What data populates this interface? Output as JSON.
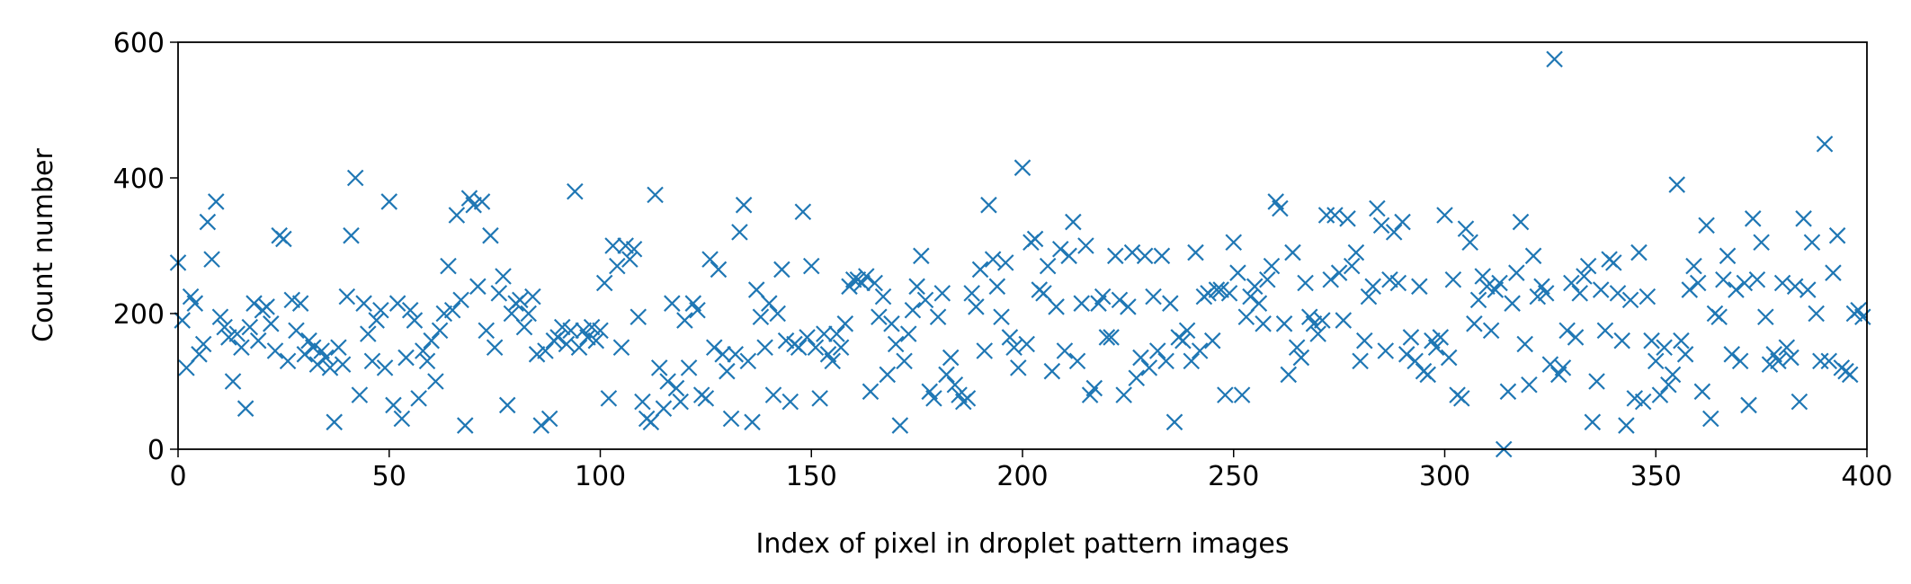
{
  "chart_data": {
    "type": "scatter",
    "xlabel": "Index of pixel in droplet pattern images",
    "ylabel": "Count number",
    "marker": "x",
    "color": "#1f77b4",
    "xlim": [
      0,
      400
    ],
    "xticks": [
      0,
      50,
      100,
      150,
      200,
      250,
      300,
      350,
      400
    ],
    "ylim": [
      0,
      600
    ],
    "yticks": [
      0,
      200,
      400,
      600
    ],
    "grid": false,
    "x": [
      0,
      1,
      2,
      3,
      4,
      5,
      6,
      7,
      8,
      9,
      10,
      11,
      12,
      13,
      14,
      15,
      16,
      17,
      18,
      19,
      20,
      21,
      22,
      23,
      24,
      25,
      26,
      27,
      28,
      29,
      30,
      31,
      32,
      33,
      34,
      35,
      36,
      37,
      38,
      39,
      40,
      41,
      42,
      43,
      44,
      45,
      46,
      47,
      48,
      49,
      50,
      51,
      52,
      53,
      54,
      55,
      56,
      57,
      58,
      59,
      60,
      61,
      62,
      63,
      64,
      65,
      66,
      67,
      68,
      69,
      70,
      71,
      72,
      73,
      74,
      75,
      76,
      77,
      78,
      79,
      80,
      81,
      82,
      83,
      84,
      85,
      86,
      87,
      88,
      89,
      90,
      91,
      92,
      93,
      94,
      95,
      96,
      97,
      98,
      99,
      100,
      101,
      102,
      103,
      104,
      105,
      106,
      107,
      108,
      109,
      110,
      111,
      112,
      113,
      114,
      115,
      116,
      117,
      118,
      119,
      120,
      121,
      122,
      123,
      124,
      125,
      126,
      127,
      128,
      129,
      130,
      131,
      132,
      133,
      134,
      135,
      136,
      137,
      138,
      139,
      140,
      141,
      142,
      143,
      144,
      145,
      146,
      147,
      148,
      149,
      150,
      151,
      152,
      153,
      154,
      155,
      156,
      157,
      158,
      159,
      160,
      161,
      162,
      163,
      164,
      165,
      166,
      167,
      168,
      169,
      170,
      171,
      172,
      173,
      174,
      175,
      176,
      177,
      178,
      179,
      180,
      181,
      182,
      183,
      184,
      185,
      186,
      187,
      188,
      189,
      190,
      191,
      192,
      193,
      194,
      195,
      196,
      197,
      198,
      199,
      200,
      201,
      202,
      203,
      204,
      205,
      206,
      207,
      208,
      209,
      210,
      211,
      212,
      213,
      214,
      215,
      216,
      217,
      218,
      219,
      220,
      221,
      222,
      223,
      224,
      225,
      226,
      227,
      228,
      229,
      230,
      231,
      232,
      233,
      234,
      235,
      236,
      237,
      238,
      239,
      240,
      241,
      242,
      243,
      244,
      245,
      246,
      247,
      248,
      249,
      250,
      251,
      252,
      253,
      254,
      255,
      256,
      257,
      258,
      259,
      260,
      261,
      262,
      263,
      264,
      265,
      266,
      267,
      268,
      269,
      270,
      271,
      272,
      273,
      274,
      275,
      276,
      277,
      278,
      279,
      280,
      281,
      282,
      283,
      284,
      285,
      286,
      287,
      288,
      289,
      290,
      291,
      292,
      293,
      294,
      295,
      296,
      297,
      298,
      299,
      300,
      301,
      302,
      303,
      304,
      305,
      306,
      307,
      308,
      309,
      310,
      311,
      312,
      313,
      314,
      315,
      316,
      317,
      318,
      319,
      320,
      321,
      322,
      323,
      324,
      325,
      326,
      327,
      328,
      329,
      330,
      331,
      332,
      333,
      334,
      335,
      336,
      337,
      338,
      339,
      340,
      341,
      342,
      343,
      344,
      345,
      346,
      347,
      348,
      349,
      350,
      351,
      352,
      353,
      354,
      355,
      356,
      357,
      358,
      359,
      360,
      361,
      362,
      363,
      364,
      365,
      366,
      367,
      368,
      369,
      370,
      371,
      372,
      373,
      374,
      375,
      376,
      377,
      378,
      379,
      380,
      381,
      382,
      383,
      384,
      385,
      386,
      387,
      388,
      389,
      390,
      391,
      392,
      393,
      394,
      395,
      396,
      397,
      398,
      399
    ],
    "values": [
      275,
      190,
      120,
      225,
      215,
      140,
      155,
      335,
      280,
      365,
      195,
      180,
      165,
      100,
      170,
      150,
      60,
      180,
      215,
      160,
      205,
      210,
      185,
      145,
      315,
      310,
      130,
      220,
      175,
      215,
      140,
      160,
      150,
      125,
      145,
      135,
      120,
      40,
      150,
      125,
      225,
      315,
      400,
      80,
      215,
      170,
      130,
      190,
      205,
      120,
      365,
      65,
      215,
      45,
      135,
      205,
      190,
      75,
      145,
      130,
      160,
      100,
      175,
      200,
      270,
      205,
      345,
      220,
      35,
      370,
      360,
      240,
      365,
      175,
      315,
      150,
      230,
      255,
      65,
      200,
      215,
      220,
      180,
      200,
      225,
      140,
      35,
      145,
      45,
      160,
      165,
      180,
      155,
      175,
      380,
      150,
      175,
      165,
      180,
      160,
      175,
      245,
      75,
      300,
      270,
      150,
      300,
      280,
      295,
      195,
      70,
      45,
      40,
      375,
      120,
      60,
      100,
      215,
      90,
      70,
      190,
      120,
      215,
      205,
      80,
      75,
      280,
      150,
      265,
      140,
      115,
      45,
      140,
      320,
      360,
      130,
      40,
      235,
      195,
      150,
      215,
      80,
      200,
      265,
      160,
      70,
      155,
      150,
      350,
      165,
      270,
      150,
      75,
      170,
      140,
      130,
      170,
      150,
      185,
      240,
      250,
      250,
      245,
      255,
      85,
      245,
      195,
      225,
      110,
      185,
      155,
      35,
      130,
      170,
      205,
      240,
      285,
      220,
      85,
      75,
      195,
      230,
      110,
      135,
      95,
      80,
      70,
      75,
      230,
      210,
      265,
      145,
      360,
      280,
      240,
      195,
      275,
      165,
      150,
      120,
      415,
      155,
      305,
      310,
      235,
      230,
      270,
      115,
      210,
      295,
      145,
      285,
      335,
      130,
      215,
      300,
      80,
      90,
      215,
      225,
      165,
      165,
      285,
      220,
      80,
      210,
      290,
      105,
      135,
      285,
      120,
      225,
      145,
      285,
      130,
      215,
      40,
      165,
      160,
      175,
      130,
      290,
      145,
      225,
      230,
      160,
      235,
      235,
      80,
      230,
      305,
      260,
      80,
      195,
      225,
      240,
      215,
      185,
      250,
      270,
      365,
      355,
      185,
      110,
      290,
      150,
      135,
      245,
      195,
      185,
      170,
      190,
      345,
      250,
      345,
      260,
      190,
      340,
      270,
      290,
      130,
      160,
      225,
      240,
      355,
      330,
      145,
      250,
      320,
      245,
      335,
      140,
      165,
      130,
      240,
      115,
      110,
      160,
      150,
      165,
      345,
      135,
      250,
      80,
      75,
      325,
      305,
      185,
      220,
      255,
      240,
      175,
      235,
      245,
      0,
      85,
      215,
      260,
      335,
      155,
      95,
      285,
      225,
      240,
      230,
      125,
      575,
      110,
      120,
      175,
      245,
      165,
      230,
      255,
      270,
      40,
      100,
      235,
      175,
      280,
      275,
      230,
      160,
      35,
      220,
      75,
      290,
      70,
      225,
      160,
      130,
      80,
      150,
      95,
      110,
      390,
      160,
      140,
      235,
      270,
      245,
      85,
      330,
      45,
      200,
      195,
      250,
      285,
      140,
      235,
      130,
      245,
      65,
      340,
      250,
      305,
      195,
      125,
      140,
      130,
      245,
      150,
      135,
      240,
      70,
      340,
      235,
      305,
      200,
      130,
      450,
      130,
      260,
      315,
      120,
      115,
      110,
      200,
      205,
      195
    ]
  }
}
